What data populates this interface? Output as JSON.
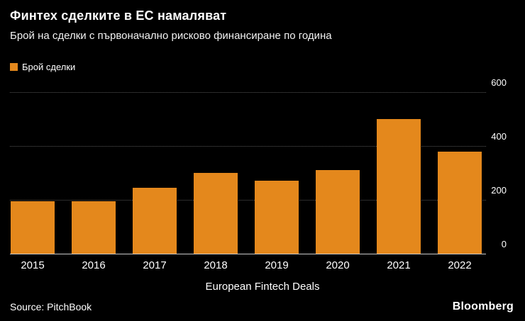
{
  "header": {
    "title": "Финтех сделките в ЕС намаляват",
    "subtitle": "Брой на сделки с първоначално рисково финансиране по година"
  },
  "legend": {
    "label": "Брой сделки"
  },
  "colors": {
    "bar": "#E4881C",
    "background": "#000000",
    "gridline": "#565656",
    "zero_line": "#C9C9C9",
    "text": "#FFFFFF"
  },
  "chart_data": {
    "type": "bar",
    "title": "Финтех сделките в ЕС намаляват",
    "subtitle": "Брой на сделки с първоначално рисково финансиране по година",
    "categories": [
      "2015",
      "2016",
      "2017",
      "2018",
      "2019",
      "2020",
      "2021",
      "2022"
    ],
    "values": [
      195,
      195,
      245,
      300,
      270,
      310,
      500,
      380
    ],
    "series_name": "Брой сделки",
    "xlabel": "European Fintech Deals",
    "ylabel": "",
    "ylim": [
      0,
      600
    ],
    "yticks": [
      0,
      200,
      400,
      600
    ],
    "grid": "horizontal-dotted",
    "legend_position": "top-left",
    "ytick_side": "right"
  },
  "axis": {
    "x_title": "European Fintech Deals"
  },
  "footer": {
    "source": "Source: PitchBook",
    "brand": "Bloomberg"
  }
}
